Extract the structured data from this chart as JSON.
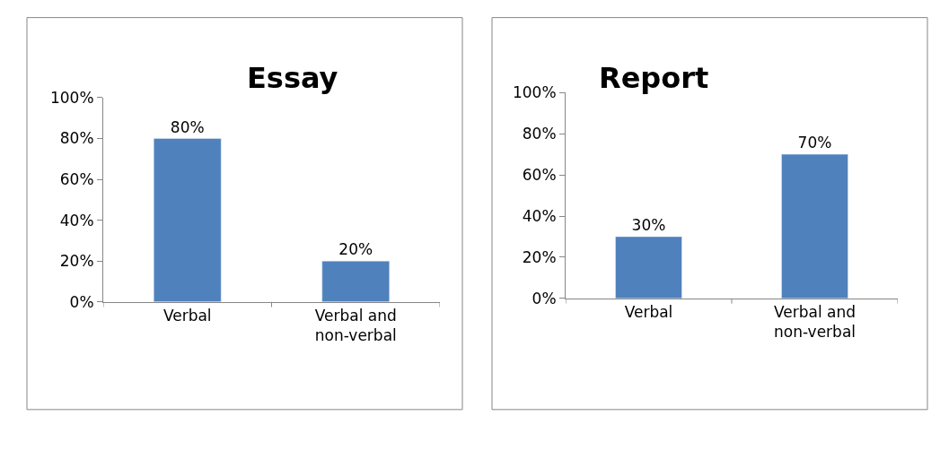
{
  "chart_data": [
    {
      "type": "bar",
      "title": "Essay",
      "categories": [
        "Verbal",
        "Verbal and non-verbal"
      ],
      "values": [
        80,
        20
      ],
      "color": "#4f81bd",
      "value_labels": [
        "80%",
        "20%"
      ],
      "ylim": [
        0,
        100
      ],
      "yticks": [
        {
          "value": 0,
          "label": "0%"
        },
        {
          "value": 20,
          "label": "20%"
        },
        {
          "value": 40,
          "label": "40%"
        },
        {
          "value": 60,
          "label": "60%"
        },
        {
          "value": 80,
          "label": "80%"
        },
        {
          "value": 100,
          "label": "100%"
        }
      ],
      "grid": false
    },
    {
      "type": "bar",
      "title": "Report",
      "categories": [
        "Verbal",
        "Verbal and non-verbal"
      ],
      "values": [
        30,
        70
      ],
      "color": "#4f81bd",
      "value_labels": [
        "30%",
        "70%"
      ],
      "ylim": [
        0,
        100
      ],
      "yticks": [
        {
          "value": 0,
          "label": "0%"
        },
        {
          "value": 20,
          "label": "20%"
        },
        {
          "value": 40,
          "label": "40%"
        },
        {
          "value": 60,
          "label": "60%"
        },
        {
          "value": 80,
          "label": "80%"
        },
        {
          "value": 100,
          "label": "100%"
        }
      ],
      "grid": false
    }
  ]
}
